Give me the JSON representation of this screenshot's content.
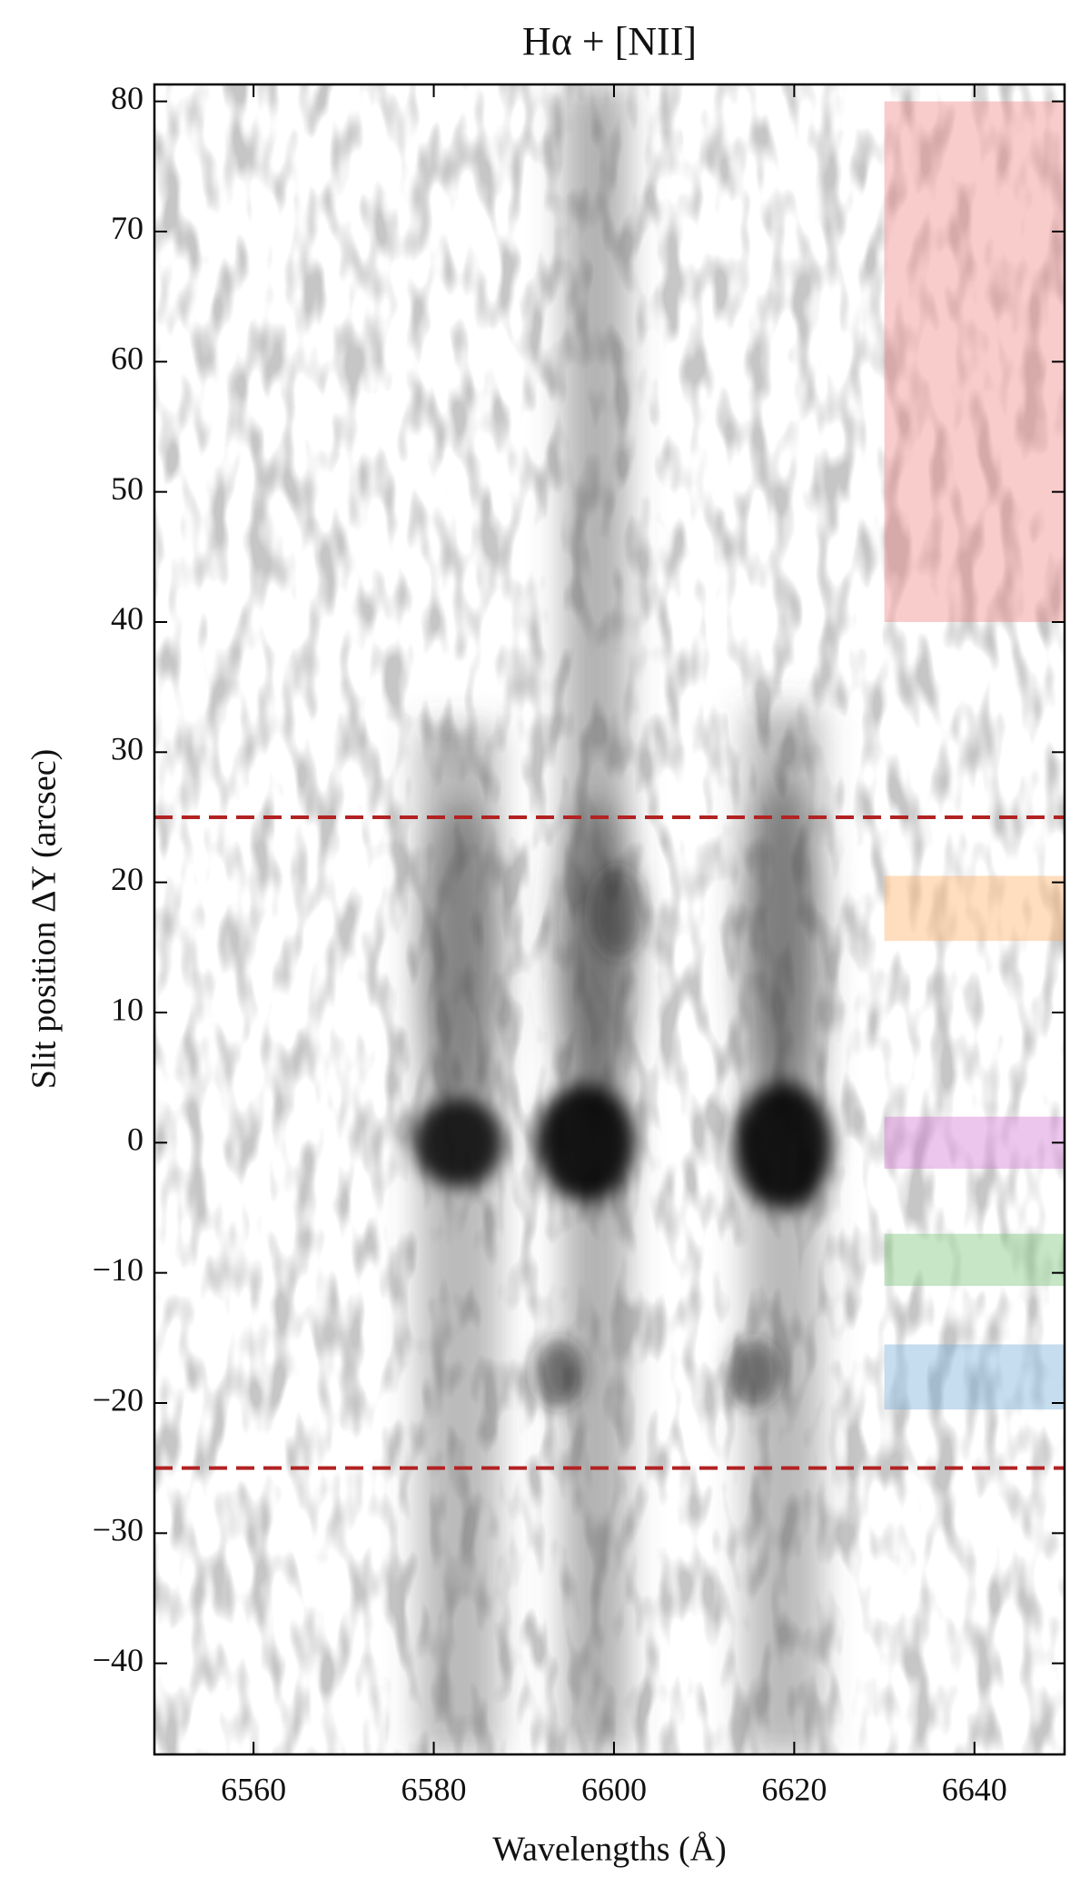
{
  "chart_data": {
    "type": "spectrum_image",
    "title": "Hα + [NII]",
    "xlabel": "Wavelengths (Å)",
    "ylabel": "Slit position ΔY (arcsec)",
    "xlim": [
      6549,
      6650
    ],
    "ylim": [
      -47,
      81.3
    ],
    "xticks": [
      6560,
      6580,
      6600,
      6620,
      6640
    ],
    "yticks": [
      {
        "value": -40,
        "label": "−40"
      },
      {
        "value": -30,
        "label": "−30"
      },
      {
        "value": -20,
        "label": "−20"
      },
      {
        "value": -10,
        "label": "−10"
      },
      0,
      10,
      20,
      30,
      40,
      50,
      60,
      70,
      80
    ],
    "hlines": {
      "values": [
        25,
        -25
      ],
      "color": "#b22222",
      "style": "dashed"
    },
    "regions": [
      {
        "xlim": [
          6630,
          6650
        ],
        "ylim": [
          40,
          80
        ],
        "color": "#f08080"
      },
      {
        "xlim": [
          6630,
          6650
        ],
        "ylim": [
          15.5,
          20.5
        ],
        "color": "#ffaa60"
      },
      {
        "xlim": [
          6630,
          6650
        ],
        "ylim": [
          -2,
          2
        ],
        "color": "#d070d0"
      },
      {
        "xlim": [
          6630,
          6650
        ],
        "ylim": [
          -11,
          -7
        ],
        "color": "#70c070"
      },
      {
        "xlim": [
          6630,
          6650
        ],
        "ylim": [
          -20.5,
          -15.5
        ],
        "color": "#70a8d8"
      }
    ]
  }
}
